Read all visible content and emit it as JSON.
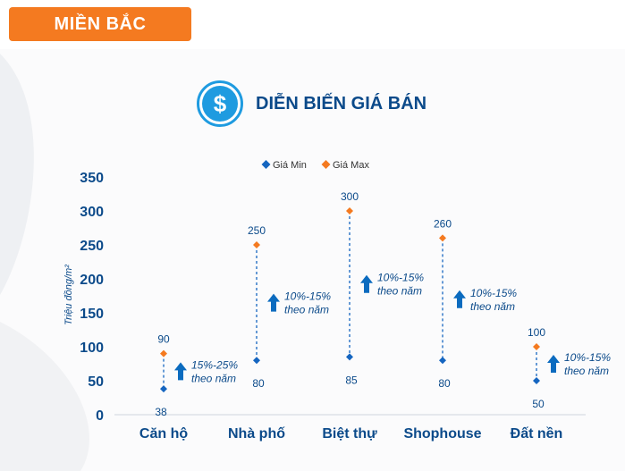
{
  "region_badge": "MIỀN BẮC",
  "page_title": "DIỄN BIẾN GIÁ BÁN",
  "icon": "dollar-icon",
  "colors": {
    "min": "#1565c0",
    "max": "#f47a20",
    "accent": "#1f9be0",
    "text": "#0b4a8a",
    "badge": "#f47a20"
  },
  "chart_data": {
    "type": "scatter",
    "title": "DIỄN BIẾN GIÁ BÁN",
    "ylabel": "Triệu đồng/m²",
    "ylim": [
      0,
      350
    ],
    "yticks": [
      "0",
      "50",
      "100",
      "150",
      "200",
      "250",
      "300",
      "350"
    ],
    "categories": [
      "Căn hộ",
      "Nhà phố",
      "Biệt thự",
      "Shophouse",
      "Đất nền"
    ],
    "series": [
      {
        "name": "Giá Min",
        "values": [
          38,
          80,
          85,
          80,
          50
        ]
      },
      {
        "name": "Giá Max",
        "values": [
          90,
          250,
          300,
          260,
          100
        ]
      }
    ],
    "annotations": [
      {
        "line1": "15%-25%",
        "line2": "theo năm"
      },
      {
        "line1": "10%-15%",
        "line2": "theo năm"
      },
      {
        "line1": "10%-15%",
        "line2": "theo năm"
      },
      {
        "line1": "10%-15%",
        "line2": "theo năm"
      },
      {
        "line1": "10%-15%",
        "line2": "theo năm"
      }
    ],
    "legend_position": "top"
  }
}
